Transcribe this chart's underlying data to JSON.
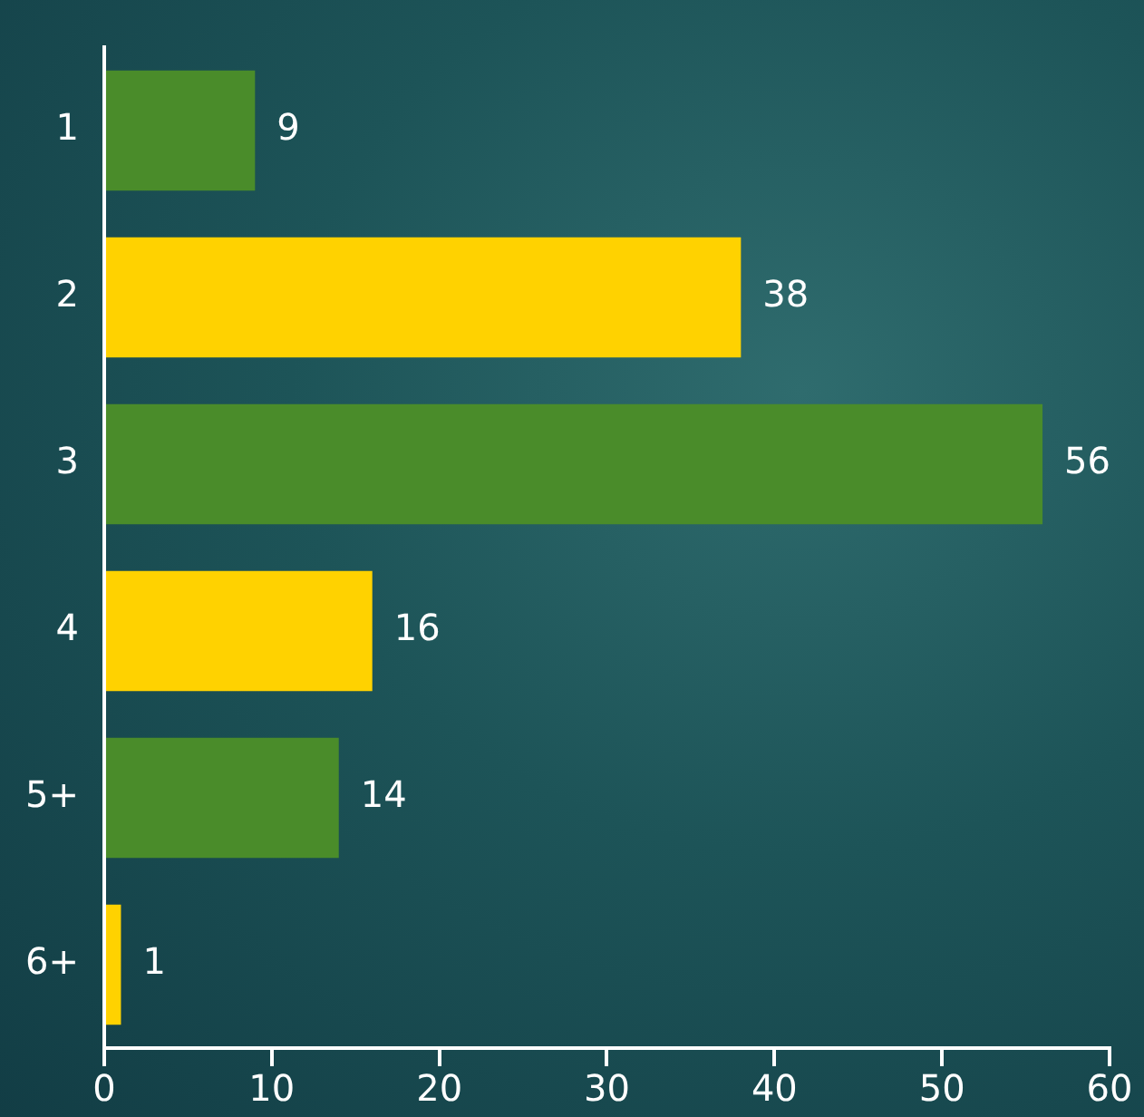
{
  "chart_data": {
    "type": "bar",
    "orientation": "horizontal",
    "categories": [
      "1",
      "2",
      "3",
      "4",
      "5+",
      "6+"
    ],
    "values": [
      9,
      38,
      56,
      16,
      14,
      1
    ],
    "colors": [
      "#4a8c2a",
      "#ffd200",
      "#4a8c2a",
      "#ffd200",
      "#4a8c2a",
      "#ffd200"
    ],
    "xlim": [
      0,
      60
    ],
    "xticks": [
      0,
      10,
      20,
      30,
      40,
      50,
      60
    ],
    "grid": false,
    "legend": false,
    "data_labels": true
  }
}
